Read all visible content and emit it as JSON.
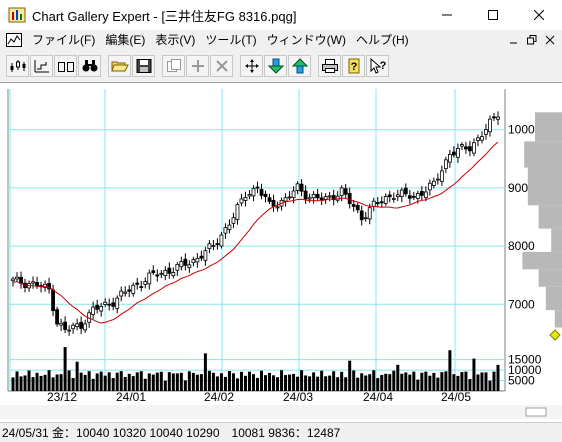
{
  "window": {
    "title": "Chart Gallery Expert - [三井住友FG 8316.pqg]"
  },
  "menu": {
    "items": [
      "ファイル(F)",
      "編集(E)",
      "表示(V)",
      "ツール(T)",
      "ウィンドウ(W)",
      "ヘルプ(H)"
    ]
  },
  "toolbar": {
    "buttons": [
      "candlestick-chart-icon",
      "line-chart-icon",
      "bar-chart-icon",
      "search-icon",
      "open-folder-icon",
      "save-icon",
      "copy-icon",
      "add-icon",
      "delete-icon",
      "move-icon",
      "download-icon",
      "upload-icon",
      "print-icon",
      "help-icon",
      "context-help-icon"
    ]
  },
  "status": {
    "text": "24/05/31 金：10040 10320 10040 10290　10081 9836：12487"
  },
  "chart_data": {
    "type": "candlestick",
    "price_axis": {
      "labels": [
        "10000",
        "9000",
        "8000",
        "7000"
      ],
      "values": [
        10000,
        9000,
        8000,
        7000
      ],
      "range": [
        6300,
        10700
      ]
    },
    "volume_axis": {
      "labels": [
        "15000",
        "10000",
        "5000"
      ],
      "values": [
        15000,
        10000,
        5000
      ],
      "max": 22000
    },
    "x_labels": [
      "23/12",
      "24/01",
      "24/02",
      "24/03",
      "24/04",
      "24/05"
    ],
    "grid": true,
    "colors": {
      "grid": "#80e8f0",
      "candle": "#000000",
      "ma": "#cc0000",
      "profile": "#b8b8b8",
      "volume": "#000000",
      "marker": "#e8e800"
    },
    "close_anchors": [
      [
        0,
        7400
      ],
      [
        5,
        7350
      ],
      [
        9,
        7250
      ],
      [
        11,
        6700
      ],
      [
        13,
        6550
      ],
      [
        17,
        6650
      ],
      [
        20,
        6900
      ],
      [
        25,
        7050
      ],
      [
        30,
        7300
      ],
      [
        35,
        7500
      ],
      [
        40,
        7600
      ],
      [
        45,
        7750
      ],
      [
        50,
        8000
      ],
      [
        55,
        8500
      ],
      [
        58,
        8900
      ],
      [
        61,
        9000
      ],
      [
        64,
        8700
      ],
      [
        68,
        8800
      ],
      [
        71,
        9000
      ],
      [
        74,
        8850
      ],
      [
        78,
        8800
      ],
      [
        82,
        8950
      ],
      [
        84,
        8750
      ],
      [
        87,
        8500
      ],
      [
        90,
        8700
      ],
      [
        95,
        8900
      ],
      [
        100,
        8850
      ],
      [
        105,
        9050
      ],
      [
        109,
        9600
      ],
      [
        114,
        9700
      ],
      [
        118,
        10000
      ],
      [
        121,
        10290
      ]
    ],
    "volume_profile": [
      [
        9800,
        10300,
        30
      ],
      [
        9350,
        9800,
        42
      ],
      [
        8700,
        9350,
        38
      ],
      [
        8300,
        8700,
        26
      ],
      [
        7900,
        8300,
        12
      ],
      [
        7600,
        7900,
        44
      ],
      [
        7300,
        7600,
        26
      ],
      [
        6900,
        7300,
        18
      ],
      [
        6600,
        6900,
        8
      ]
    ]
  }
}
